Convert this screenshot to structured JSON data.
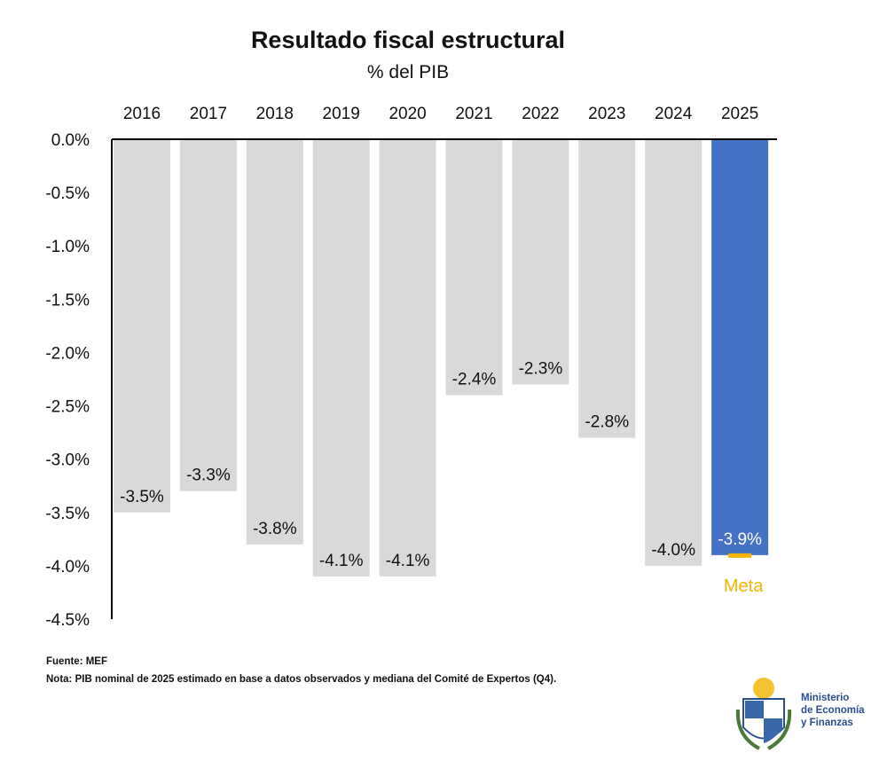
{
  "chart_data": {
    "type": "bar",
    "title": "Resultado fiscal estructural",
    "subtitle": "% del PIB",
    "categories": [
      "2016",
      "2017",
      "2018",
      "2019",
      "2020",
      "2021",
      "2022",
      "2023",
      "2024",
      "2025"
    ],
    "values": [
      -3.5,
      -3.3,
      -3.8,
      -4.1,
      -4.1,
      -2.4,
      -2.3,
      -2.8,
      -4.0,
      -3.9
    ],
    "labels": [
      "-3.5%",
      "-3.3%",
      "-3.8%",
      "-4.1%",
      "-4.1%",
      "-2.4%",
      "-2.3%",
      "-2.8%",
      "-4.0%",
      "-3.9%"
    ],
    "yticks": [
      0,
      -0.5,
      -1,
      -1.5,
      -2,
      -2.5,
      -3,
      -3.5,
      -4,
      -4.5
    ],
    "ytick_labels": [
      "0.0%",
      "-0.5%",
      "-1.0%",
      "-1.5%",
      "-2.0%",
      "-2.5%",
      "-3.0%",
      "-3.5%",
      "-4.0%",
      "-4.5%"
    ],
    "ylim": [
      -4.5,
      0
    ],
    "grid": false,
    "meta": {
      "label": "Meta",
      "value": -3.9,
      "category": "2025"
    },
    "colors": {
      "default": "#d9d9d9",
      "highlight": "#4472c4",
      "meta": "#f4b400"
    }
  },
  "footer": {
    "source": "Fuente: MEF",
    "note": "Nota: PIB nominal de 2025 estimado en base a datos observados y mediana del Comité de Expertos (Q4)."
  },
  "logo": {
    "line1": "Ministerio",
    "line2": "de Economía",
    "line3": "y Finanzas"
  }
}
